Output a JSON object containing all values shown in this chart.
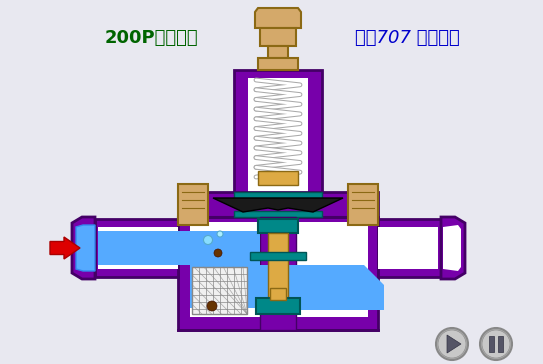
{
  "bg_color": "#e8e8f0",
  "title_left": "200P型减压阀",
  "title_right": "化工707 剪辑制作",
  "title_left_color": "#006400",
  "title_right_color": "#0000cc",
  "title_fontsize": 13,
  "valve_body_color": "#7700aa",
  "valve_body_edge": "#440066",
  "spring_color": "#cccccc",
  "bolt_color": "#ddaa44",
  "teal_color": "#008888",
  "fluid_color": "#55aaff",
  "fluid_dark": "#3388ee",
  "arrow_color": "#dd0000",
  "button_color": "#999999",
  "white_inner": "#ffffff",
  "mesh_color": "#888888",
  "tan_color": "#d4a96a",
  "tan_edge": "#8B6914"
}
